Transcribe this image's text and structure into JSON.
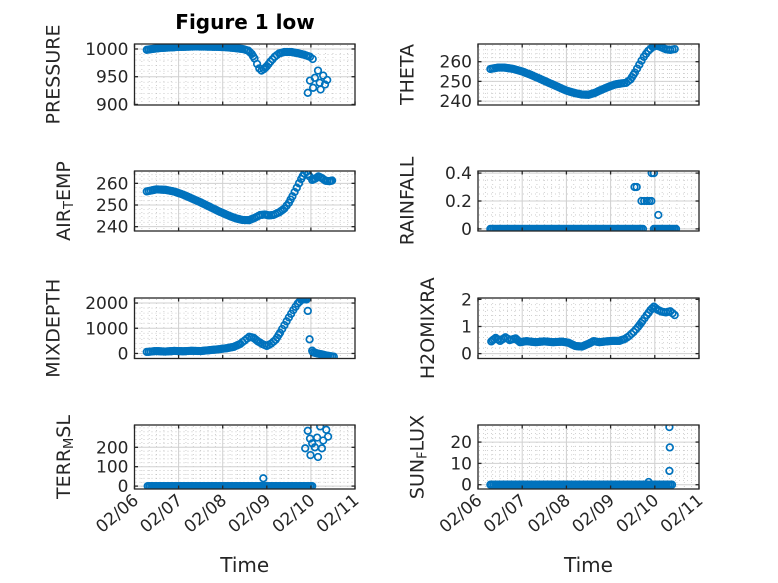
{
  "figure": {
    "title": "Figure 1 low",
    "xlabel": "Time",
    "background": "#ffffff",
    "marker_color": "#0072BD",
    "axis_color": "#262626",
    "grid_color": "#d0d0d0",
    "minor_grid_color": "#c4c4c4",
    "xlim": [
      6,
      11
    ],
    "x_tick_values": [
      6,
      7,
      8,
      9,
      10,
      11
    ],
    "x_tick_labels": [
      "02/06",
      "02/07",
      "02/08",
      "02/09",
      "02/10",
      "02/11"
    ]
  },
  "chart_data": [
    {
      "type": "scatter",
      "name": "PRESSURE",
      "row": 0,
      "col": 0,
      "label_parts": [
        {
          "text": "PRESSURE"
        }
      ],
      "ylim": [
        899,
        1009
      ],
      "ytick_values": [
        900,
        950,
        1000
      ],
      "ytick_labels": [
        "900",
        "950",
        "1000"
      ],
      "yminor": 10,
      "tick_chars": 4,
      "trails": [
        [
          [
            6.28,
            998.5
          ],
          [
            6.4,
            1000
          ],
          [
            6.55,
            1001.5
          ],
          [
            6.75,
            1002.5
          ],
          [
            6.95,
            1003.5
          ],
          [
            7.15,
            1004
          ],
          [
            7.4,
            1004.5
          ],
          [
            7.65,
            1004.2
          ],
          [
            7.9,
            1003.8
          ],
          [
            8.1,
            1003
          ],
          [
            8.3,
            1001.5
          ],
          [
            8.45,
            1000
          ],
          [
            8.58,
            997
          ],
          [
            8.66,
            991
          ],
          [
            8.72,
            983
          ],
          [
            8.78,
            973
          ],
          [
            8.83,
            965
          ],
          [
            8.88,
            961
          ],
          [
            8.93,
            963.5
          ],
          [
            9.0,
            969
          ],
          [
            9.08,
            977
          ],
          [
            9.18,
            986
          ],
          [
            9.28,
            992
          ],
          [
            9.4,
            994.5
          ],
          [
            9.55,
            994.5
          ],
          [
            9.7,
            992.5
          ],
          [
            9.85,
            989.5
          ],
          [
            9.98,
            986
          ],
          [
            10.04,
            982
          ]
        ]
      ],
      "points": [
        [
          9.93,
          921
        ],
        [
          9.98,
          943
        ],
        [
          10.05,
          930
        ],
        [
          10.09,
          948
        ],
        [
          10.16,
          961
        ],
        [
          10.2,
          939
        ],
        [
          10.22,
          927
        ],
        [
          10.28,
          952
        ],
        [
          10.32,
          936
        ],
        [
          10.37,
          944
        ]
      ]
    },
    {
      "type": "scatter",
      "name": "THETA",
      "row": 0,
      "col": 1,
      "label_parts": [
        {
          "text": "THETA"
        }
      ],
      "ylim": [
        238,
        269
      ],
      "ytick_values": [
        240,
        250,
        260
      ],
      "ytick_labels": [
        "240",
        "250",
        "260"
      ],
      "yminor": 2,
      "tick_chars": 3,
      "trails": [
        [
          [
            6.28,
            256.3
          ],
          [
            6.45,
            257
          ],
          [
            6.6,
            257
          ],
          [
            6.8,
            256.3
          ],
          [
            7.0,
            255
          ],
          [
            7.2,
            253.3
          ],
          [
            7.4,
            251.3
          ],
          [
            7.6,
            249.3
          ],
          [
            7.8,
            247.3
          ],
          [
            8.0,
            245.3
          ],
          [
            8.2,
            244
          ],
          [
            8.35,
            243.3
          ],
          [
            8.5,
            243.2
          ],
          [
            8.65,
            244.2
          ],
          [
            8.8,
            245.8
          ],
          [
            8.95,
            247.2
          ],
          [
            9.1,
            248.4
          ],
          [
            9.25,
            249
          ],
          [
            9.35,
            249.3
          ],
          [
            9.45,
            251
          ],
          [
            9.55,
            254.5
          ],
          [
            9.65,
            258.5
          ],
          [
            9.75,
            262.5
          ],
          [
            9.85,
            265.5
          ],
          [
            9.95,
            267.5
          ],
          [
            10.05,
            268.2
          ],
          [
            10.15,
            267.3
          ],
          [
            10.25,
            266.3
          ],
          [
            10.35,
            266
          ],
          [
            10.45,
            266.4
          ]
        ]
      ],
      "points": []
    },
    {
      "type": "scatter",
      "name": "AIR_TEMP",
      "row": 1,
      "col": 0,
      "label_parts": [
        {
          "text": "AIR"
        },
        {
          "text": "T",
          "sub": true
        },
        {
          "text": "EMP"
        }
      ],
      "ylim": [
        238,
        265.7
      ],
      "ytick_values": [
        240,
        250,
        260
      ],
      "ytick_labels": [
        "240",
        "250",
        "260"
      ],
      "yminor": 2,
      "tick_chars": 3,
      "trails": [
        [
          [
            6.28,
            256.3
          ],
          [
            6.5,
            257.2
          ],
          [
            6.7,
            257
          ],
          [
            6.9,
            256.2
          ],
          [
            7.1,
            254.8
          ],
          [
            7.3,
            253
          ],
          [
            7.5,
            251.2
          ],
          [
            7.7,
            249.2
          ],
          [
            7.9,
            247.2
          ],
          [
            8.1,
            245.4
          ],
          [
            8.3,
            243.8
          ],
          [
            8.45,
            243.1
          ],
          [
            8.6,
            243
          ],
          [
            8.72,
            244
          ],
          [
            8.85,
            245.4
          ],
          [
            8.95,
            245.6
          ],
          [
            9.05,
            245.2
          ],
          [
            9.15,
            245.4
          ],
          [
            9.28,
            246.6
          ],
          [
            9.4,
            248.4
          ],
          [
            9.5,
            251
          ],
          [
            9.58,
            254
          ],
          [
            9.68,
            258
          ],
          [
            9.78,
            262
          ],
          [
            9.85,
            264.6
          ],
          [
            9.9,
            265.3
          ],
          [
            9.97,
            263.2
          ],
          [
            10.03,
            261.6
          ],
          [
            10.1,
            262.2
          ],
          [
            10.17,
            263.2
          ],
          [
            10.25,
            262.4
          ],
          [
            10.33,
            261.2
          ],
          [
            10.42,
            261
          ],
          [
            10.48,
            261.3
          ]
        ]
      ],
      "points": []
    },
    {
      "type": "scatter",
      "name": "RAINFALL",
      "row": 1,
      "col": 1,
      "label_parts": [
        {
          "text": "RAINFALL"
        }
      ],
      "ylim": [
        -0.015,
        0.415
      ],
      "ytick_values": [
        0,
        0.2,
        0.4
      ],
      "ytick_labels": [
        "0",
        "0.2",
        "0.4"
      ],
      "yminor": 0.05,
      "tick_chars": 3,
      "trails": [
        [
          [
            6.28,
            0
          ],
          [
            9.73,
            0
          ]
        ],
        [
          [
            9.98,
            0
          ],
          [
            10.48,
            0
          ]
        ]
      ],
      "points": [
        [
          9.54,
          0.3
        ],
        [
          9.59,
          0.3
        ],
        [
          9.7,
          0.2
        ],
        [
          9.76,
          0.2
        ],
        [
          9.82,
          0.2
        ],
        [
          9.87,
          0.2
        ],
        [
          9.92,
          0.2
        ],
        [
          9.93,
          0.4
        ],
        [
          9.98,
          0.4
        ],
        [
          10.08,
          0.1
        ]
      ]
    },
    {
      "type": "scatter",
      "name": "MIXDEPTH",
      "row": 2,
      "col": 0,
      "label_parts": [
        {
          "text": "MIXDEPTH"
        }
      ],
      "ylim": [
        -200,
        2200
      ],
      "ytick_values": [
        0,
        1000,
        2000
      ],
      "ytick_labels": [
        "0",
        "1000",
        "2000"
      ],
      "yminor": 200,
      "tick_chars": 4,
      "trails": [
        [
          [
            6.28,
            60
          ],
          [
            6.5,
            95
          ],
          [
            6.7,
            75
          ],
          [
            6.9,
            100
          ],
          [
            7.1,
            85
          ],
          [
            7.3,
            105
          ],
          [
            7.5,
            95
          ],
          [
            7.7,
            130
          ],
          [
            7.9,
            165
          ],
          [
            8.1,
            210
          ],
          [
            8.25,
            260
          ],
          [
            8.4,
            380
          ],
          [
            8.5,
            520
          ],
          [
            8.6,
            660
          ],
          [
            8.7,
            620
          ],
          [
            8.8,
            480
          ],
          [
            8.9,
            370
          ],
          [
            9.0,
            300
          ],
          [
            9.1,
            390
          ],
          [
            9.2,
            540
          ],
          [
            9.3,
            820
          ],
          [
            9.4,
            1120
          ],
          [
            9.5,
            1430
          ],
          [
            9.6,
            1720
          ],
          [
            9.7,
            1980
          ],
          [
            9.78,
            2120
          ],
          [
            9.84,
            2160
          ],
          [
            9.9,
            2140
          ]
        ],
        [
          [
            10.05,
            40
          ],
          [
            10.2,
            -20
          ],
          [
            10.35,
            -80
          ],
          [
            10.52,
            -130
          ]
        ]
      ],
      "points": [
        [
          9.93,
          1690
        ],
        [
          9.97,
          560
        ],
        [
          10.03,
          110
        ]
      ]
    },
    {
      "type": "scatter",
      "name": "H2OMIXRA",
      "row": 2,
      "col": 1,
      "label_parts": [
        {
          "text": "H2OMIXRA"
        }
      ],
      "ylim": [
        -0.18,
        2.05
      ],
      "ytick_values": [
        0,
        1,
        2
      ],
      "ytick_labels": [
        "0",
        "1",
        "2"
      ],
      "yminor": 0.2,
      "tick_chars": 1,
      "trails": [
        [
          [
            6.3,
            0.45
          ],
          [
            6.4,
            0.58
          ],
          [
            6.5,
            0.47
          ],
          [
            6.62,
            0.6
          ],
          [
            6.72,
            0.5
          ],
          [
            6.85,
            0.56
          ],
          [
            6.95,
            0.42
          ],
          [
            7.1,
            0.46
          ],
          [
            7.3,
            0.42
          ],
          [
            7.5,
            0.45
          ],
          [
            7.7,
            0.42
          ],
          [
            7.9,
            0.44
          ],
          [
            8.05,
            0.4
          ],
          [
            8.2,
            0.28
          ],
          [
            8.35,
            0.26
          ],
          [
            8.5,
            0.36
          ],
          [
            8.62,
            0.46
          ],
          [
            8.75,
            0.42
          ],
          [
            8.9,
            0.45
          ],
          [
            9.05,
            0.47
          ],
          [
            9.2,
            0.47
          ],
          [
            9.32,
            0.54
          ],
          [
            9.42,
            0.65
          ],
          [
            9.52,
            0.8
          ],
          [
            9.62,
            0.98
          ],
          [
            9.72,
            1.2
          ],
          [
            9.82,
            1.42
          ],
          [
            9.9,
            1.6
          ],
          [
            9.98,
            1.73
          ],
          [
            10.06,
            1.62
          ],
          [
            10.15,
            1.55
          ],
          [
            10.25,
            1.52
          ],
          [
            10.35,
            1.56
          ],
          [
            10.45,
            1.42
          ]
        ]
      ],
      "points": []
    },
    {
      "type": "scatter",
      "name": "TERR_MSL",
      "row": 3,
      "col": 0,
      "label_parts": [
        {
          "text": "TERR"
        },
        {
          "text": "M",
          "sub": true
        },
        {
          "text": "SL"
        }
      ],
      "ylim": [
        -15,
        315
      ],
      "ytick_values": [
        0,
        100,
        200
      ],
      "ytick_labels": [
        "0",
        "100",
        "200"
      ],
      "yminor": 20,
      "tick_chars": 3,
      "trails": [
        [
          [
            6.3,
            0
          ],
          [
            10.03,
            0
          ]
        ]
      ],
      "points": [
        [
          8.92,
          40
        ],
        [
          9.87,
          195
        ],
        [
          9.93,
          285
        ],
        [
          9.98,
          245
        ],
        [
          9.99,
          160
        ],
        [
          10.03,
          220
        ],
        [
          10.09,
          200
        ],
        [
          10.14,
          250
        ],
        [
          10.16,
          150
        ],
        [
          10.21,
          308
        ],
        [
          10.25,
          195
        ],
        [
          10.28,
          235
        ],
        [
          10.35,
          290
        ],
        [
          10.39,
          255
        ]
      ]
    },
    {
      "type": "scatter",
      "name": "SUN_FLUX",
      "row": 3,
      "col": 1,
      "label_parts": [
        {
          "text": "SUN"
        },
        {
          "text": "F",
          "sub": true
        },
        {
          "text": "LUX"
        }
      ],
      "ylim": [
        -2,
        28
      ],
      "ytick_values": [
        0,
        10,
        20
      ],
      "ytick_labels": [
        "0",
        "10",
        "20"
      ],
      "yminor": 2,
      "tick_chars": 2,
      "trails": [
        [
          [
            6.28,
            0
          ],
          [
            10.39,
            0
          ]
        ]
      ],
      "points": [
        [
          9.86,
          1.3
        ],
        [
          10.33,
          27
        ],
        [
          10.34,
          17.5
        ],
        [
          10.33,
          6.5
        ]
      ]
    }
  ]
}
